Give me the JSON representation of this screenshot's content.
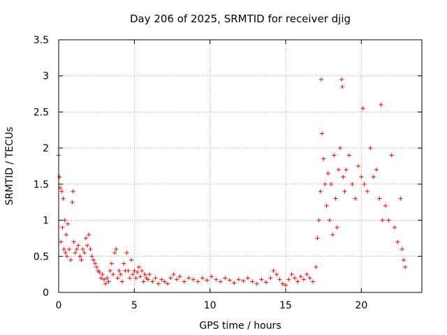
{
  "chart_data": {
    "type": "scatter",
    "title": "Day 206 of 2025, SRMTID for receiver djig",
    "xlabel": "GPS time / hours",
    "ylabel": "SRMTID / TECUs",
    "xlim": [
      0,
      24
    ],
    "ylim": [
      0,
      3.5
    ],
    "xticks": [
      0,
      5,
      10,
      15,
      20
    ],
    "xtick_labels": [
      "0",
      "5",
      "10",
      "15",
      "20"
    ],
    "yticks": [
      0,
      0.5,
      1,
      1.5,
      2,
      2.5,
      3,
      3.5
    ],
    "ytick_labels": [
      "0",
      "0.5",
      "1",
      "1.5",
      "2",
      "2.5",
      "3",
      "3.5"
    ],
    "grid": true,
    "marker": "+",
    "color": "#ff0000",
    "series": [
      {
        "name": "SRMTID",
        "points": [
          [
            0.0,
            1.9
          ],
          [
            0.05,
            1.6
          ],
          [
            0.1,
            1.45
          ],
          [
            0.15,
            0.7
          ],
          [
            0.2,
            1.4
          ],
          [
            0.25,
            0.9
          ],
          [
            0.3,
            1.3
          ],
          [
            0.35,
            0.6
          ],
          [
            0.4,
            1.0
          ],
          [
            0.45,
            0.55
          ],
          [
            0.5,
            0.8
          ],
          [
            0.55,
            0.5
          ],
          [
            0.6,
            0.95
          ],
          [
            0.7,
            0.6
          ],
          [
            0.8,
            0.45
          ],
          [
            0.9,
            1.25
          ],
          [
            0.95,
            1.4
          ],
          [
            1.0,
            0.7
          ],
          [
            1.1,
            0.55
          ],
          [
            1.2,
            0.6
          ],
          [
            1.3,
            0.65
          ],
          [
            1.4,
            0.5
          ],
          [
            1.5,
            0.45
          ],
          [
            1.6,
            0.6
          ],
          [
            1.7,
            0.55
          ],
          [
            1.8,
            0.75
          ],
          [
            1.9,
            0.65
          ],
          [
            2.0,
            0.8
          ],
          [
            2.1,
            0.6
          ],
          [
            2.2,
            0.5
          ],
          [
            2.3,
            0.45
          ],
          [
            2.4,
            0.4
          ],
          [
            2.5,
            0.35
          ],
          [
            2.6,
            0.3
          ],
          [
            2.7,
            0.28
          ],
          [
            2.8,
            0.2
          ],
          [
            2.9,
            0.25
          ],
          [
            3.0,
            0.18
          ],
          [
            3.1,
            0.12
          ],
          [
            3.2,
            0.2
          ],
          [
            3.3,
            0.15
          ],
          [
            3.4,
            0.3
          ],
          [
            3.5,
            0.4
          ],
          [
            3.6,
            0.25
          ],
          [
            3.7,
            0.55
          ],
          [
            3.8,
            0.6
          ],
          [
            3.9,
            0.2
          ],
          [
            4.0,
            0.3
          ],
          [
            4.1,
            0.25
          ],
          [
            4.2,
            0.15
          ],
          [
            4.3,
            0.4
          ],
          [
            4.4,
            0.3
          ],
          [
            4.5,
            0.55
          ],
          [
            4.6,
            0.3
          ],
          [
            4.7,
            0.2
          ],
          [
            4.8,
            0.45
          ],
          [
            4.9,
            0.25
          ],
          [
            5.0,
            0.3
          ],
          [
            5.1,
            0.2
          ],
          [
            5.2,
            0.28
          ],
          [
            5.3,
            0.35
          ],
          [
            5.4,
            0.22
          ],
          [
            5.5,
            0.3
          ],
          [
            5.6,
            0.15
          ],
          [
            5.7,
            0.25
          ],
          [
            5.8,
            0.2
          ],
          [
            5.9,
            0.18
          ],
          [
            6.0,
            0.25
          ],
          [
            6.2,
            0.15
          ],
          [
            6.4,
            0.2
          ],
          [
            6.6,
            0.12
          ],
          [
            6.8,
            0.18
          ],
          [
            7.0,
            0.15
          ],
          [
            7.2,
            0.12
          ],
          [
            7.4,
            0.2
          ],
          [
            7.6,
            0.25
          ],
          [
            7.8,
            0.18
          ],
          [
            8.0,
            0.22
          ],
          [
            8.3,
            0.15
          ],
          [
            8.6,
            0.2
          ],
          [
            8.9,
            0.18
          ],
          [
            9.2,
            0.15
          ],
          [
            9.5,
            0.2
          ],
          [
            9.8,
            0.17
          ],
          [
            10.1,
            0.22
          ],
          [
            10.4,
            0.18
          ],
          [
            10.7,
            0.15
          ],
          [
            11.0,
            0.2
          ],
          [
            11.3,
            0.17
          ],
          [
            11.6,
            0.13
          ],
          [
            11.9,
            0.18
          ],
          [
            12.2,
            0.16
          ],
          [
            12.5,
            0.2
          ],
          [
            12.8,
            0.15
          ],
          [
            13.1,
            0.12
          ],
          [
            13.4,
            0.18
          ],
          [
            13.7,
            0.14
          ],
          [
            14.0,
            0.2
          ],
          [
            14.2,
            0.3
          ],
          [
            14.4,
            0.25
          ],
          [
            14.6,
            0.18
          ],
          [
            14.8,
            0.12
          ],
          [
            15.0,
            0.1
          ],
          [
            15.2,
            0.18
          ],
          [
            15.4,
            0.25
          ],
          [
            15.6,
            0.2
          ],
          [
            15.8,
            0.15
          ],
          [
            16.0,
            0.22
          ],
          [
            16.2,
            0.18
          ],
          [
            16.4,
            0.25
          ],
          [
            16.6,
            0.2
          ],
          [
            16.8,
            0.15
          ],
          [
            17.0,
            0.35
          ],
          [
            17.1,
            0.75
          ],
          [
            17.2,
            1.0
          ],
          [
            17.3,
            1.4
          ],
          [
            17.35,
            2.95
          ],
          [
            17.4,
            2.2
          ],
          [
            17.5,
            1.85
          ],
          [
            17.6,
            1.5
          ],
          [
            17.7,
            1.2
          ],
          [
            17.8,
            1.65
          ],
          [
            17.9,
            1.0
          ],
          [
            18.0,
            1.5
          ],
          [
            18.1,
            0.8
          ],
          [
            18.2,
            1.9
          ],
          [
            18.3,
            1.3
          ],
          [
            18.4,
            0.9
          ],
          [
            18.5,
            1.7
          ],
          [
            18.6,
            2.0
          ],
          [
            18.7,
            2.95
          ],
          [
            18.75,
            2.85
          ],
          [
            18.8,
            1.6
          ],
          [
            18.9,
            1.4
          ],
          [
            19.0,
            1.7
          ],
          [
            19.2,
            1.9
          ],
          [
            19.4,
            1.5
          ],
          [
            19.6,
            1.3
          ],
          [
            19.8,
            1.75
          ],
          [
            20.0,
            1.6
          ],
          [
            20.1,
            2.55
          ],
          [
            20.2,
            1.5
          ],
          [
            20.4,
            1.4
          ],
          [
            20.6,
            2.0
          ],
          [
            20.8,
            1.6
          ],
          [
            21.0,
            1.7
          ],
          [
            21.2,
            1.3
          ],
          [
            21.3,
            2.6
          ],
          [
            21.4,
            1.0
          ],
          [
            21.6,
            1.2
          ],
          [
            21.8,
            1.0
          ],
          [
            22.0,
            1.9
          ],
          [
            22.2,
            0.9
          ],
          [
            22.4,
            0.7
          ],
          [
            22.6,
            1.3
          ],
          [
            22.7,
            0.6
          ],
          [
            22.8,
            0.45
          ],
          [
            22.9,
            0.35
          ]
        ]
      }
    ]
  }
}
